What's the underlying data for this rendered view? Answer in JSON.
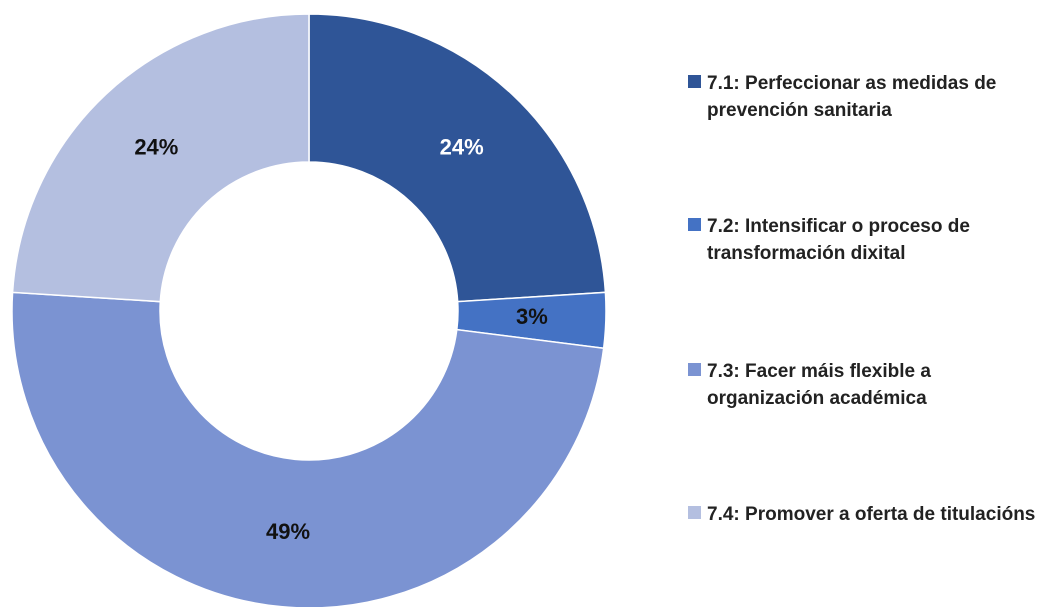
{
  "chart_data": {
    "type": "donut",
    "categories": [
      "7.1: Perfeccionar as medidas de prevención sanitaria",
      "7.2: Intensificar o proceso de transformación dixital",
      "7.3: Facer máis flexible a organización académica",
      "7.4: Promover a oferta de titulacións"
    ],
    "values": [
      24,
      3,
      49,
      24
    ],
    "value_labels": [
      "24%",
      "3%",
      "49%",
      "24%"
    ],
    "colors": [
      "#2f5597",
      "#4472c4",
      "#7b93d2",
      "#b4bfe0"
    ]
  }
}
